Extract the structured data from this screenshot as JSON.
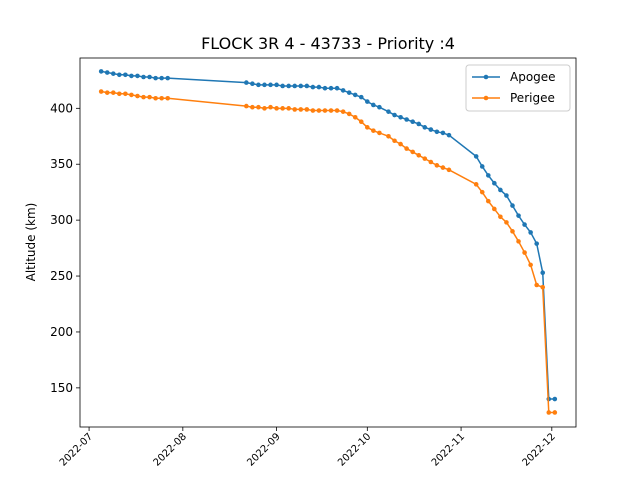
{
  "chart_data": {
    "type": "line",
    "title": "FLOCK 3R 4 - 43733 - Priority :4",
    "xlabel": "",
    "ylabel": "Altitude (km)",
    "x_ticks": [
      "2022-07",
      "2022-08",
      "2022-09",
      "2022-10",
      "2022-11",
      "2022-12"
    ],
    "y_ticks": [
      150,
      200,
      250,
      300,
      350,
      400
    ],
    "ylim": [
      115,
      445
    ],
    "xlim": [
      "2022-06-28",
      "2022-12-09"
    ],
    "grid": false,
    "legend_position": "top-right",
    "x": [
      "2022-07-05",
      "2022-07-07",
      "2022-07-09",
      "2022-07-11",
      "2022-07-13",
      "2022-07-15",
      "2022-07-17",
      "2022-07-19",
      "2022-07-21",
      "2022-07-23",
      "2022-07-25",
      "2022-07-27",
      "2022-08-22",
      "2022-08-24",
      "2022-08-26",
      "2022-08-28",
      "2022-08-30",
      "2022-09-01",
      "2022-09-03",
      "2022-09-05",
      "2022-09-07",
      "2022-09-09",
      "2022-09-11",
      "2022-09-13",
      "2022-09-15",
      "2022-09-17",
      "2022-09-19",
      "2022-09-21",
      "2022-09-23",
      "2022-09-25",
      "2022-09-27",
      "2022-09-29",
      "2022-10-01",
      "2022-10-03",
      "2022-10-05",
      "2022-10-08",
      "2022-10-10",
      "2022-10-12",
      "2022-10-14",
      "2022-10-16",
      "2022-10-18",
      "2022-10-20",
      "2022-10-22",
      "2022-10-24",
      "2022-10-26",
      "2022-10-28",
      "2022-11-06",
      "2022-11-08",
      "2022-11-10",
      "2022-11-12",
      "2022-11-14",
      "2022-11-16",
      "2022-11-18",
      "2022-11-20",
      "2022-11-22",
      "2022-11-24",
      "2022-11-26",
      "2022-11-28",
      "2022-11-30",
      "2022-12-02"
    ],
    "series": [
      {
        "name": "Apogee",
        "color": "#1f77b4",
        "values": [
          433,
          432,
          431,
          430,
          430,
          429,
          429,
          428,
          428,
          427,
          427,
          427,
          423,
          422,
          421,
          421,
          421,
          421,
          420,
          420,
          420,
          420,
          420,
          419,
          419,
          418,
          418,
          418,
          416,
          414,
          412,
          410,
          406,
          403,
          401,
          397,
          394,
          392,
          390,
          388,
          386,
          383,
          381,
          379,
          378,
          376,
          357,
          348,
          340,
          333,
          327,
          322,
          313,
          304,
          296,
          289,
          279,
          253,
          140,
          140
        ],
        "labels_unused": true
      },
      {
        "name": "Perigee",
        "color": "#ff7f0e",
        "values": [
          415,
          414,
          414,
          413,
          413,
          412,
          411,
          410,
          410,
          409,
          409,
          409,
          402,
          401,
          401,
          400,
          401,
          400,
          400,
          400,
          399,
          399,
          399,
          398,
          398,
          398,
          398,
          398,
          397,
          395,
          392,
          388,
          383,
          380,
          378,
          375,
          371,
          368,
          364,
          361,
          358,
          355,
          352,
          349,
          347,
          345,
          332,
          325,
          317,
          310,
          303,
          298,
          290,
          281,
          271,
          260,
          242,
          240,
          128,
          128
        ]
      }
    ]
  }
}
